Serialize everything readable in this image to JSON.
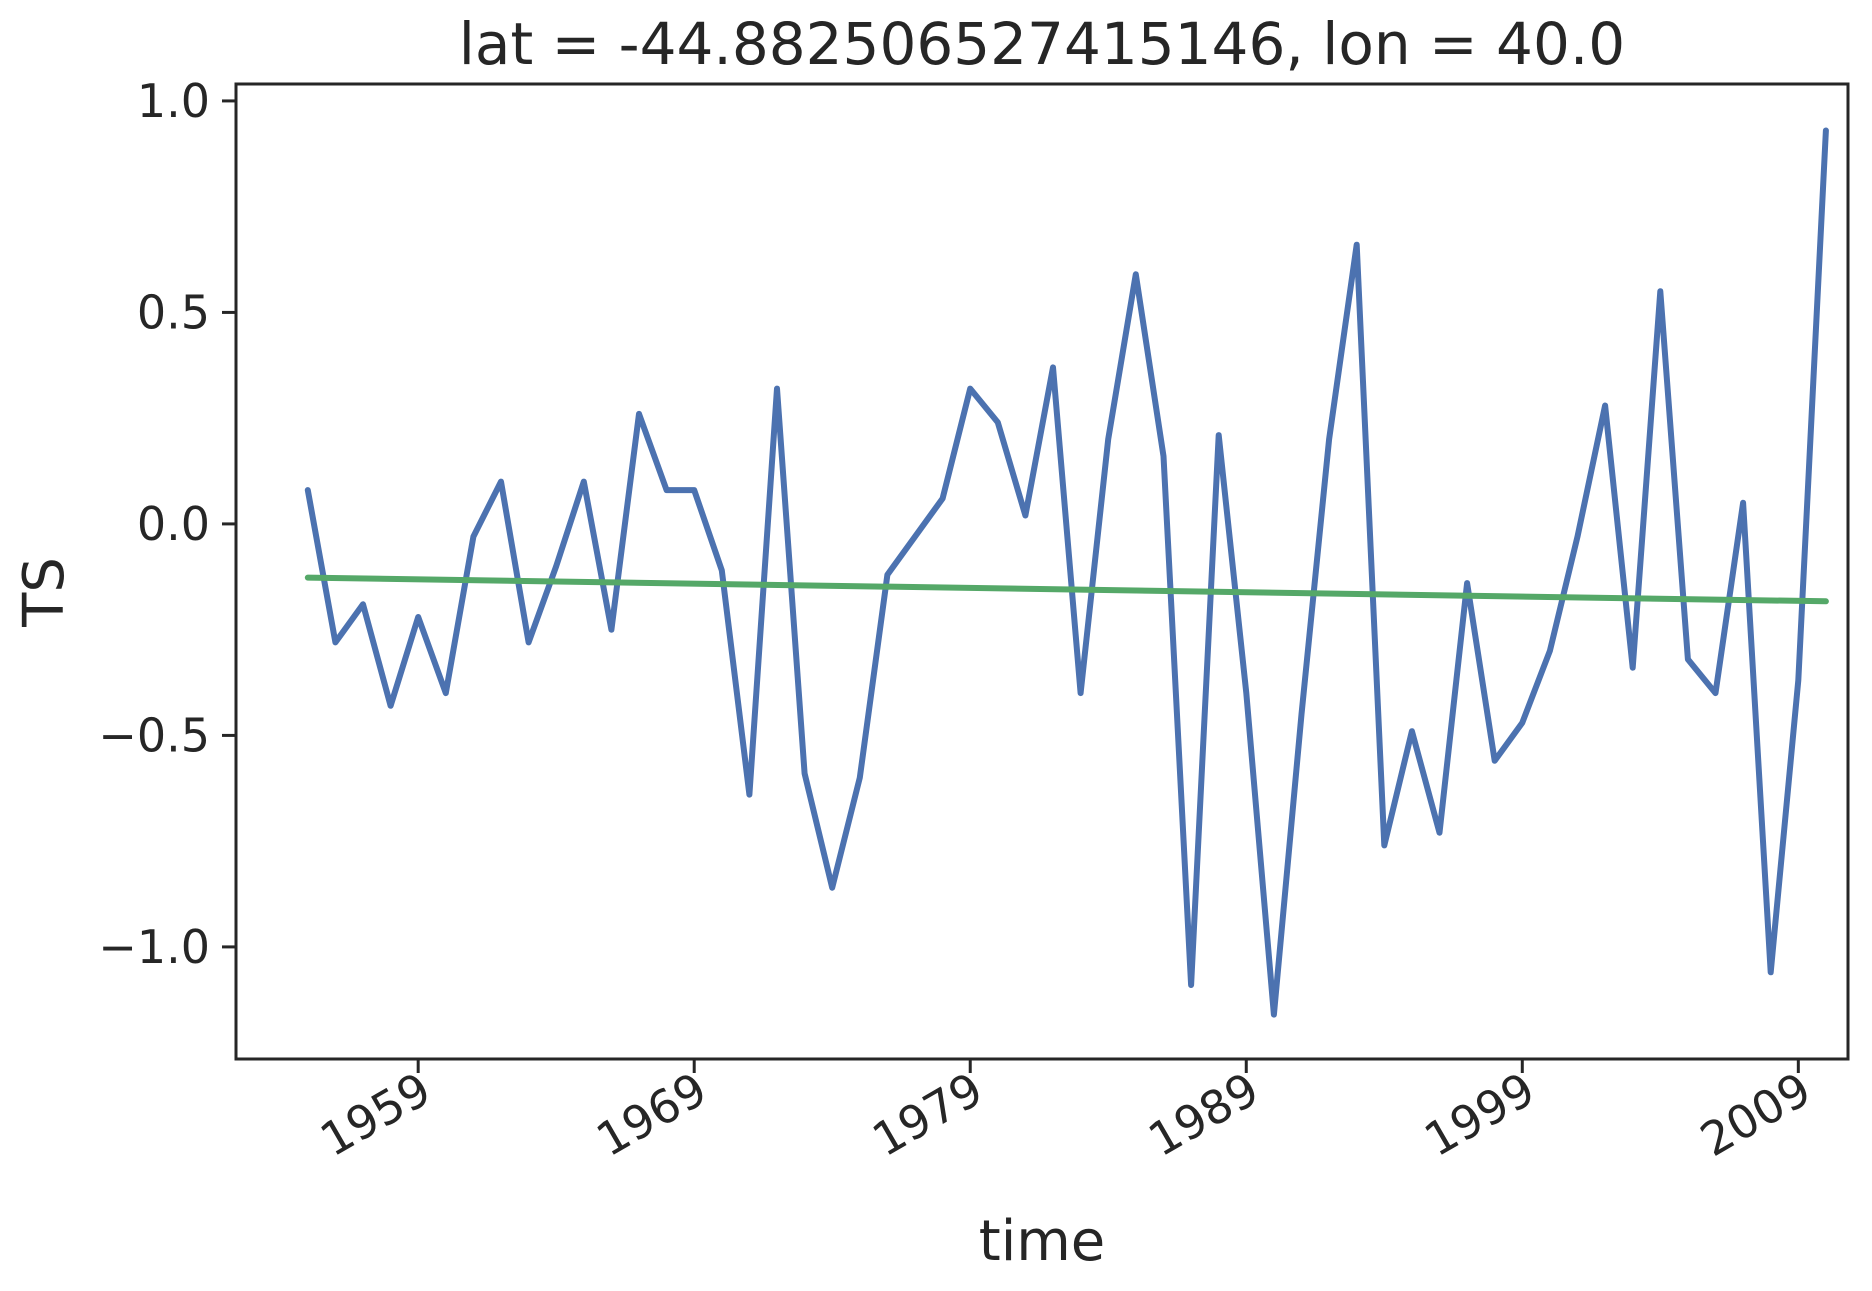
{
  "chart_data": {
    "type": "line",
    "title": "lat = -44.882506527415146, lon = 40.0",
    "xlabel": "time",
    "ylabel": "TS",
    "x_tick_labels": [
      "1959",
      "1969",
      "1979",
      "1989",
      "1999",
      "2009"
    ],
    "y_tick_labels": [
      "1.0",
      "0.5",
      "0.0",
      "−0.5",
      "−1.0"
    ],
    "xlim": [
      1952.4,
      2010.8
    ],
    "ylim": [
      -1.265,
      1.04
    ],
    "grid": false,
    "legend": "none",
    "series": [
      {
        "color": "#4c72b0",
        "x": [
          1955,
          1956,
          1957,
          1958,
          1959,
          1960,
          1961,
          1962,
          1963,
          1964,
          1965,
          1966,
          1967,
          1968,
          1969,
          1970,
          1971,
          1972,
          1973,
          1974,
          1975,
          1976,
          1977,
          1978,
          1979,
          1980,
          1981,
          1982,
          1983,
          1984,
          1985,
          1986,
          1987,
          1988,
          1989,
          1990,
          1991,
          1992,
          1993,
          1994,
          1995,
          1996,
          1997,
          1998,
          1999,
          2000,
          2001,
          2002,
          2003,
          2004,
          2005,
          2006,
          2007,
          2008,
          2009,
          2010
        ],
        "values": [
          0.08,
          -0.28,
          -0.19,
          -0.43,
          -0.22,
          -0.4,
          -0.03,
          0.1,
          -0.28,
          -0.1,
          0.1,
          -0.25,
          0.26,
          0.08,
          0.08,
          -0.11,
          -0.64,
          0.32,
          -0.59,
          -0.86,
          -0.6,
          -0.12,
          -0.03,
          0.06,
          0.32,
          0.24,
          0.02,
          0.37,
          -0.4,
          0.2,
          0.59,
          0.16,
          -1.09,
          0.21,
          -0.4,
          -1.16,
          -0.45,
          0.2,
          0.66,
          -0.76,
          -0.49,
          -0.73,
          -0.14,
          -0.56,
          -0.47,
          -0.3,
          -0.03,
          0.28,
          -0.34,
          0.55,
          -0.32,
          -0.4,
          0.05,
          -1.06,
          -0.37,
          0.93
        ]
      },
      {
        "color": "#55a868",
        "x": [
          1955,
          2010
        ],
        "values": [
          -0.127,
          -0.183
        ]
      }
    ]
  }
}
